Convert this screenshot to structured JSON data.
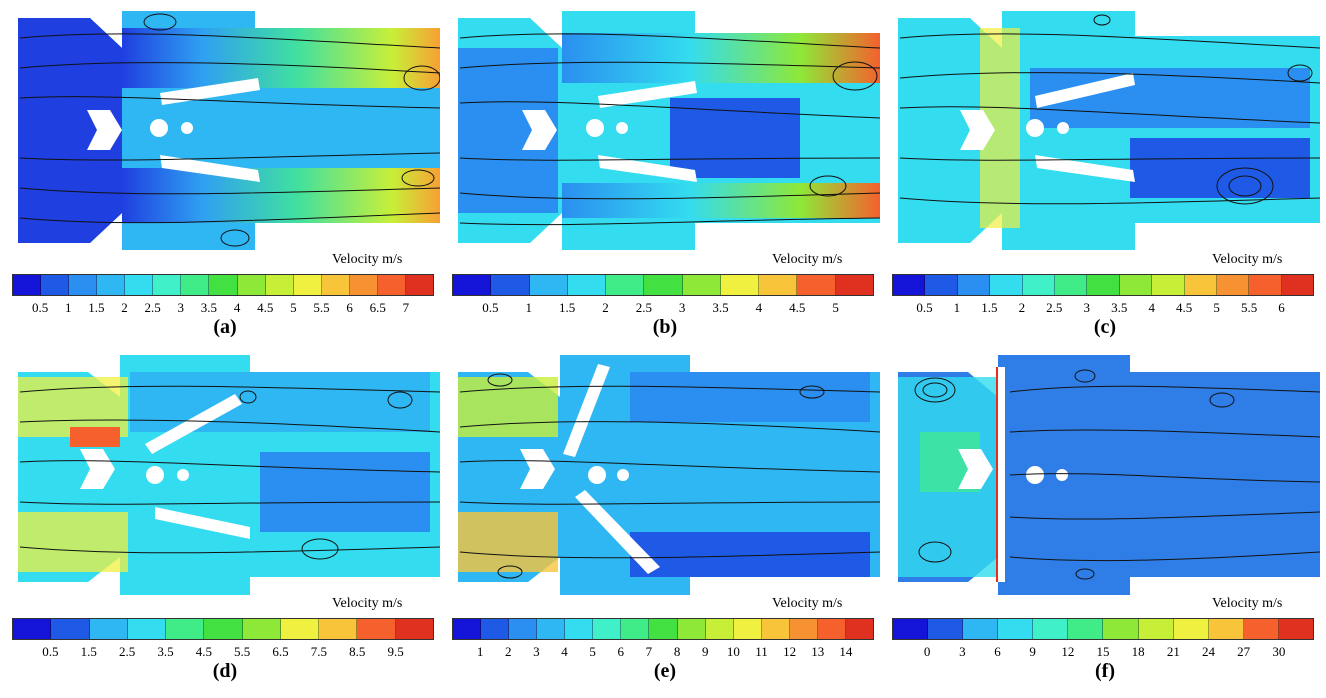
{
  "velocity_label": "Velocity m/s",
  "panels": [
    {
      "id": "a",
      "label": "(a)",
      "ticks": [
        "0.5",
        "1",
        "1.5",
        "2",
        "2.5",
        "3",
        "3.5",
        "4",
        "4.5",
        "5",
        "5.5",
        "6",
        "6.5",
        "7"
      ]
    },
    {
      "id": "b",
      "label": "(b)",
      "ticks": [
        "0.5",
        "1",
        "1.5",
        "2",
        "2.5",
        "3",
        "3.5",
        "4",
        "4.5",
        "5"
      ]
    },
    {
      "id": "c",
      "label": "(c)",
      "ticks": [
        "0.5",
        "1",
        "1.5",
        "2",
        "2.5",
        "3",
        "3.5",
        "4",
        "4.5",
        "5",
        "5.5",
        "6"
      ]
    },
    {
      "id": "d",
      "label": "(d)",
      "ticks": [
        "0.5",
        "1.5",
        "2.5",
        "3.5",
        "4.5",
        "5.5",
        "6.5",
        "7.5",
        "8.5",
        "9.5"
      ]
    },
    {
      "id": "e",
      "label": "(e)",
      "ticks": [
        "1",
        "2",
        "3",
        "4",
        "5",
        "6",
        "7",
        "8",
        "9",
        "10",
        "11",
        "12",
        "13",
        "14"
      ]
    },
    {
      "id": "f",
      "label": "(f)",
      "ticks": [
        "0",
        "3",
        "6",
        "9",
        "12",
        "15",
        "18",
        "21",
        "24",
        "27",
        "30"
      ]
    }
  ],
  "colors": {
    "scale": [
      "#1414d8",
      "#1f5ae6",
      "#2a8ff0",
      "#2fb7f4",
      "#33dcef",
      "#3ff0c8",
      "#40ec88",
      "#42e040",
      "#8ee838",
      "#c8ef38",
      "#f0f040",
      "#f7c43a",
      "#f79233",
      "#f5602c",
      "#e0301f"
    ],
    "deep_blue": "#1f3fe0",
    "streamline": "#111111"
  }
}
